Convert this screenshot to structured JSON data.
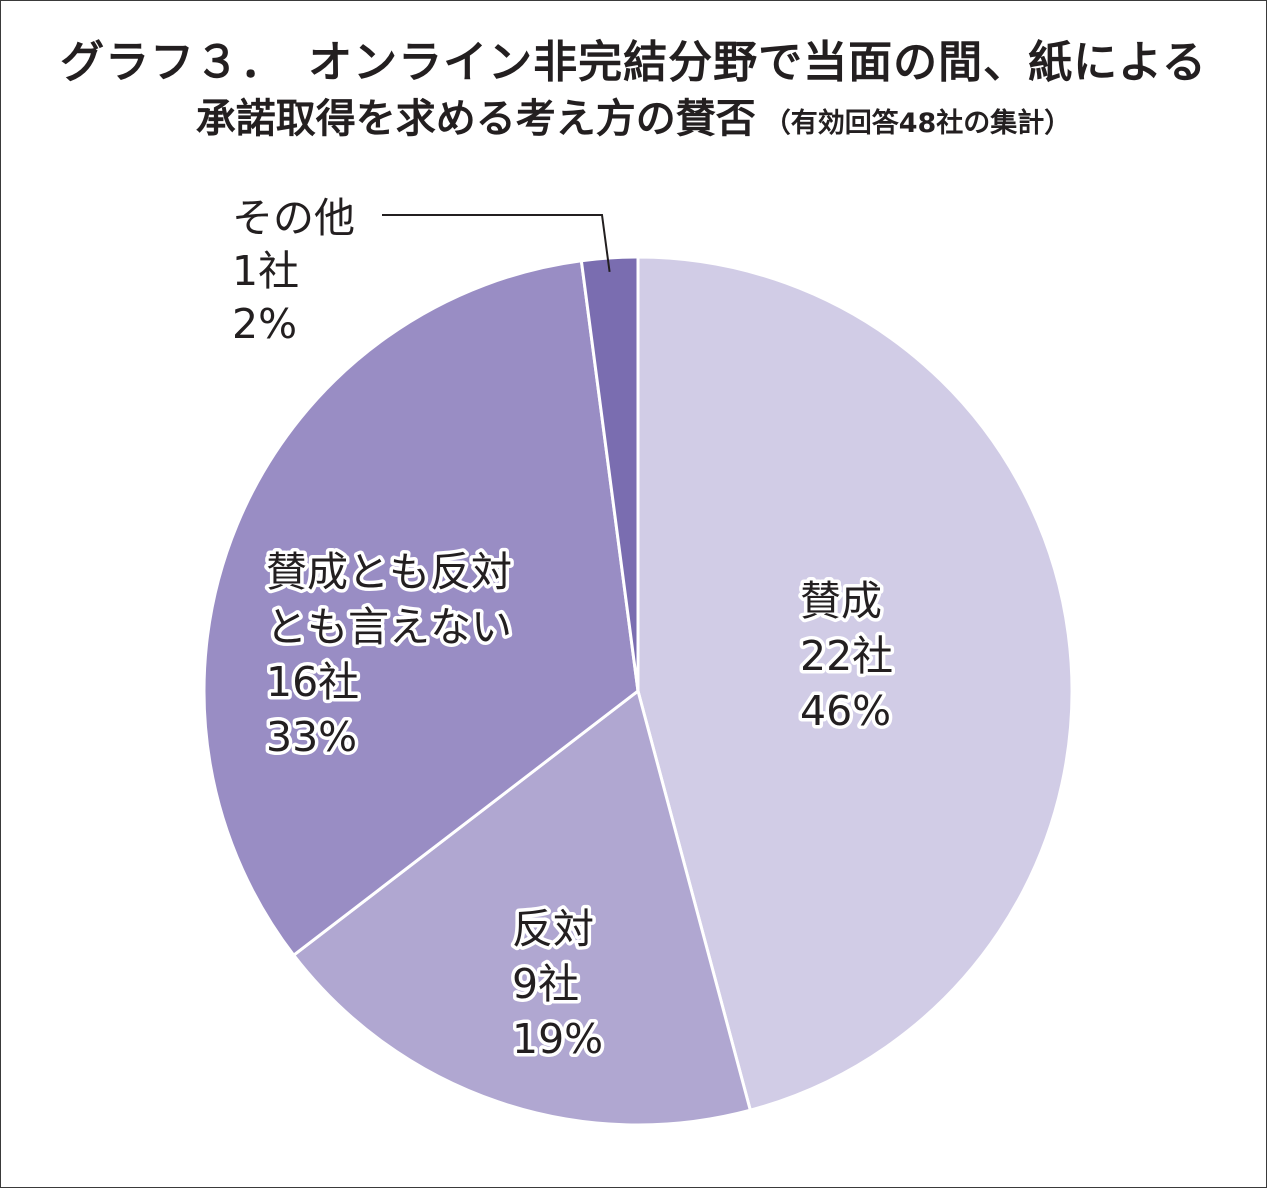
{
  "title": {
    "line1": "グラフ３．　オンライン非完結分野で当面の間、紙による",
    "line2": "承諾取得を求める考え方の賛否",
    "note": "（有効回答48社の集計）"
  },
  "chart_data": {
    "type": "pie",
    "start_angle_deg": 0,
    "direction": "clockwise",
    "slices": [
      {
        "name": "賛成",
        "count": 22,
        "count_label": "22社",
        "percent": 46,
        "percent_label": "46%",
        "color": "#d1cce6"
      },
      {
        "name": "反対",
        "count": 9,
        "count_label": "9社",
        "percent": 19,
        "percent_label": "19%",
        "color": "#b0a7d1"
      },
      {
        "name": "賛成とも反対とも言えない",
        "name_lines": [
          "賛成とも反対",
          "とも言えない"
        ],
        "count": 16,
        "count_label": "16社",
        "percent": 33,
        "percent_label": "33%",
        "color": "#998dc4"
      },
      {
        "name": "その他",
        "count": 1,
        "count_label": "1社",
        "percent": 2,
        "percent_label": "2%",
        "color": "#7a6db0"
      }
    ],
    "total": 48
  }
}
